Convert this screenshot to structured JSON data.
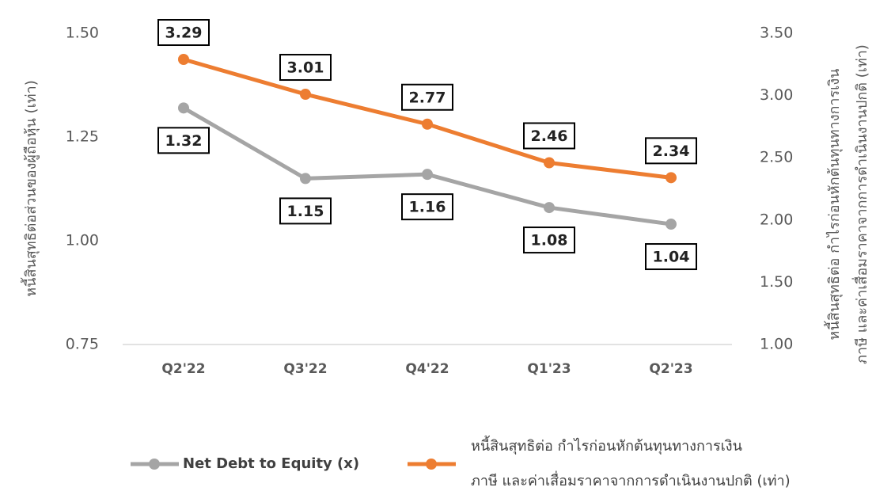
{
  "chart_data": {
    "type": "line",
    "categories": [
      "Q2'22",
      "Q3'22",
      "Q4'22",
      "Q1'23",
      "Q2'23"
    ],
    "ylabel": "หนี้สินสุทธิต่อส่วนของผู้ถือหุ้น (เท่า)",
    "y2label": [
      "หนี้สินสุทธิต่อ กำไรก่อนหักต้นทุนทางการเงิน",
      "ภาษี และค่าเสื่อมราคาจากการดำเนินงานปกติ (เท่า)"
    ],
    "ylim": [
      0.75,
      1.5
    ],
    "yticks": [
      {
        "value": 0.75,
        "label": "0.75"
      },
      {
        "value": 1.0,
        "label": "1.00"
      },
      {
        "value": 1.25,
        "label": "1.25"
      },
      {
        "value": 1.5,
        "label": "1.50"
      }
    ],
    "y2lim": [
      1.0,
      3.5
    ],
    "y2ticks": [
      {
        "value": 1.0,
        "label": "1.00"
      },
      {
        "value": 1.5,
        "label": "1.50"
      },
      {
        "value": 2.0,
        "label": "2.00"
      },
      {
        "value": 2.5,
        "label": "2.50"
      },
      {
        "value": 3.0,
        "label": "3.00"
      },
      {
        "value": 3.5,
        "label": "3.50"
      }
    ],
    "series": [
      {
        "name": [
          "Net Debt to Equity (x)"
        ],
        "color": "#a5a5a5",
        "values": [
          1.32,
          1.15,
          1.16,
          1.08,
          1.04
        ]
      },
      {
        "name": [
          "หนี้สินสุทธิต่อ กำไรก่อนหักต้นทุนทางการเงิน",
          "ภาษี และค่าเสื่อมราคาจากการดำเนินงานปกติ (เท่า)"
        ],
        "color": "#ed7d31",
        "axis": "y2",
        "values": [
          3.29,
          3.01,
          2.77,
          2.46,
          2.34
        ]
      }
    ]
  }
}
